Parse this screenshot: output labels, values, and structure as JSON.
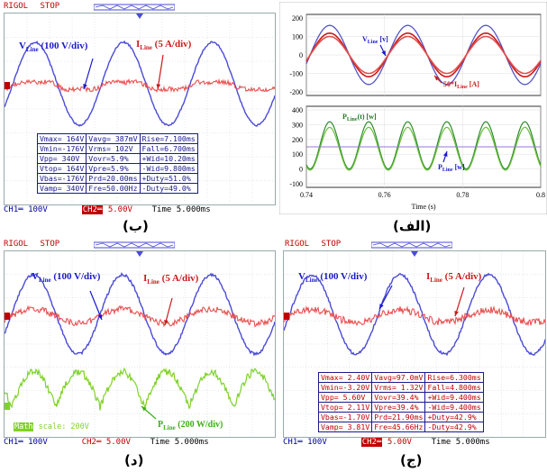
{
  "panels": {
    "b": {
      "caption": "(ب)",
      "brand": "RIGOL",
      "state": "STOP",
      "v_label": "V",
      "v_sub": "Line",
      "v_unit": " (100 V/div)",
      "i_label": "I",
      "i_sub": "Line",
      "i_unit": " (5 A/div)",
      "ch1": "CH1═  100V",
      "ch2": "CH2═",
      "ch2_val": "5.00V",
      "time": "Time 5.000ms",
      "meas": [
        [
          "Vmax= 164V",
          "Vavg= 387mV",
          "Rise=7.100ms"
        ],
        [
          "Vmin=-176V",
          "Vrms= 102V",
          "Fall=6.700ms"
        ],
        [
          "Vpp= 340V",
          "Vovr=5.9%",
          "+Wid=10.20ms"
        ],
        [
          "Vtop= 164V",
          "Vpre=5.9%",
          "-Wid=9.800ms"
        ],
        [
          "Vbas=-176V",
          "Prd=20.00ms",
          "+Duty=51.0%"
        ],
        [
          "Vamp= 340V",
          "Fre=50.00Hz",
          "-Duty=49.0%"
        ]
      ]
    },
    "alef": {
      "caption": "(الف)",
      "v_label": "V",
      "v_sub": "Line",
      "v_unit": " [v]",
      "i_label": "50*I",
      "i_sub": "Line",
      "i_unit": " [A]",
      "p_label": "P",
      "p_sub": "Line",
      "p_unit": "(t) [w]",
      "pavg_label": "P",
      "pavg_sub": "Line",
      "pavg_unit": " [w]",
      "xlabel": "Time (s)",
      "top_ticks": [
        "200",
        "100",
        "0",
        "-100",
        "-200"
      ],
      "bot_ticks": [
        "400",
        "300",
        "200",
        "100",
        "0",
        "-100"
      ],
      "x_ticks": [
        "0.74",
        "0.76",
        "0.78",
        "0.8"
      ]
    },
    "d": {
      "caption": "(د)",
      "brand": "RIGOL",
      "state": "STOP",
      "v_label": "V",
      "v_sub": "Line",
      "v_unit": " (100 V/div)",
      "i_label": "I",
      "i_sub": "Line",
      "i_unit": " (5 A/div)",
      "p_label": "P",
      "p_sub": "Line",
      "p_unit": " (200 W/div)",
      "math_label": "Math",
      "math_scale": " scale: 200V",
      "ch1": "CH1═  100V",
      "ch2": "CH2═",
      "ch2_val": "5.00V",
      "time": "Time 5.000ms"
    },
    "j": {
      "caption": "(ج)",
      "brand": "RIGOL",
      "state": "STOP",
      "v_label": "V",
      "v_sub": "Line",
      "v_unit": " (100 V/div)",
      "i_label": "I",
      "i_sub": "Line",
      "i_unit": " (5 A/div)",
      "ch1": "CH1═  100V",
      "ch2": "CH2═",
      "ch2_val": "5.00V",
      "time": "Time 5.000ms",
      "meas": [
        [
          "Vmax= 2.40V",
          "Vavg=97.0mV",
          "Rise=6.300ms"
        ],
        [
          "Vmin=-3.20V",
          "Vrms= 1.32V",
          "Fall=4.800ms"
        ],
        [
          "Vpp= 5.60V",
          "Vovr=39.4%",
          "+Wid=9.400ms"
        ],
        [
          "Vtop= 2.11V",
          "Vpre=39.4%",
          "-Wid=9.400ms"
        ],
        [
          "Vbas=-1.70V",
          "Prd=21.90ms",
          "+Duty=42.9%"
        ],
        [
          "Vamp= 3.81V",
          "Fre=45.66Hz",
          "-Duty=42.9%"
        ]
      ]
    }
  },
  "colors": {
    "voltage": "#4b4bd8",
    "current": "#e85050",
    "power": "#7fd22a",
    "sim_power": "#2e8b2e",
    "sim_current": "#cc1a1a",
    "sim_voltage": "#5555c8"
  }
}
